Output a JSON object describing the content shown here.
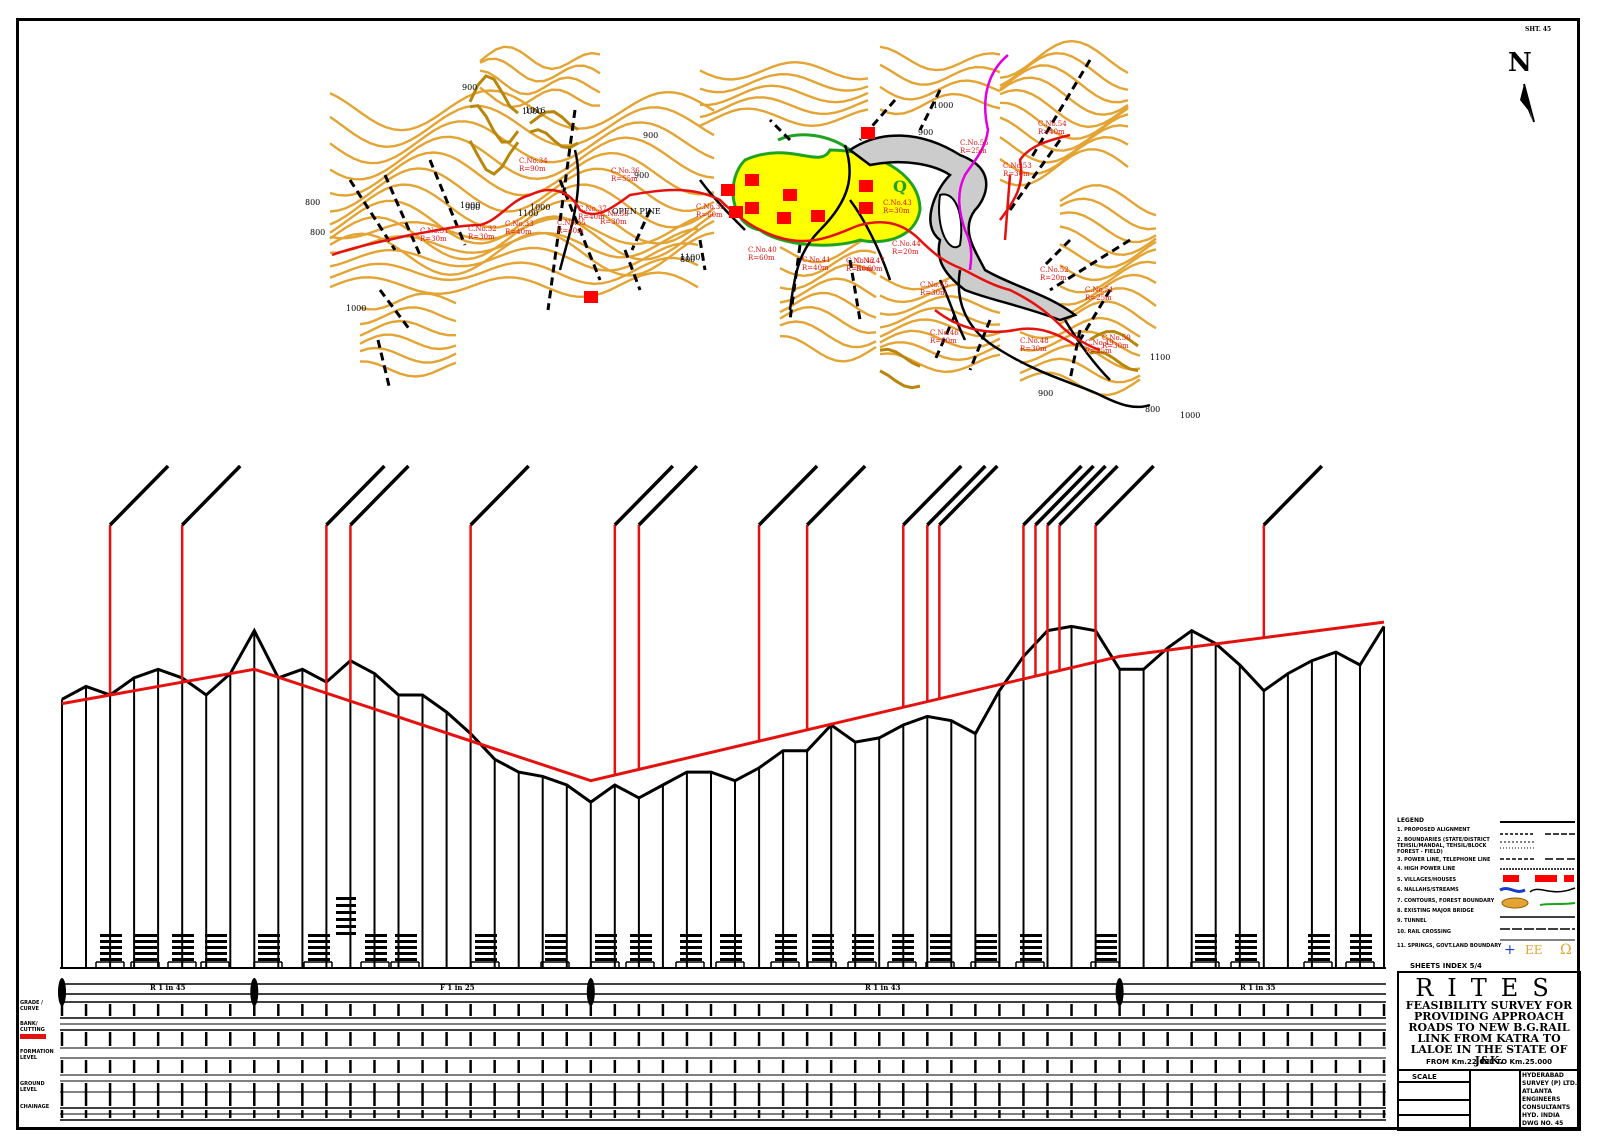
{
  "sheet": {
    "north_label": "N",
    "sheet_no": "SHT. 45"
  },
  "plan": {
    "contour_labels": [
      "800",
      "900",
      "1000",
      "1016",
      "900",
      "800",
      "1000",
      "1100",
      "900",
      "1000",
      "800",
      "1100",
      "900",
      "1000",
      "800",
      "1100",
      "1000",
      "900",
      "1000",
      "900"
    ],
    "curve_labels": [
      {
        "no": "C.No.34",
        "r": "R=90m"
      },
      {
        "no": "C.No.31",
        "r": "R=30m"
      },
      {
        "no": "C.No.32",
        "r": "R=30m"
      },
      {
        "no": "C.No.33",
        "r": "R=40m"
      },
      {
        "no": "C.No.35",
        "r": "R=40m"
      },
      {
        "no": "C.No.36",
        "r": "R=55m"
      },
      {
        "no": "C.No.37",
        "r": "R=40m"
      },
      {
        "no": "C.No.38",
        "r": "R=30m"
      },
      {
        "no": "C.No.39",
        "r": "R=60m"
      },
      {
        "no": "C.No.40",
        "r": "R=60m"
      },
      {
        "no": "C.No.41",
        "r": "R=40m"
      },
      {
        "no": "C.No.42",
        "r": "R=50m"
      },
      {
        "no": "C.No.43",
        "r": "R=30m"
      },
      {
        "no": "C.No.44",
        "r": "R=20m"
      },
      {
        "no": "C.No.45",
        "r": "R=30m"
      },
      {
        "no": "C.No.46",
        "r": "R=60m"
      },
      {
        "no": "C.No.47",
        "r": "R=60m"
      },
      {
        "no": "C.No.48",
        "r": "R=30m"
      },
      {
        "no": "C.No.49",
        "r": "R=25m"
      },
      {
        "no": "C.No.50",
        "r": "R=30m"
      },
      {
        "no": "C.No.51",
        "r": "R=25m"
      },
      {
        "no": "C.No.52",
        "r": "R=20m"
      },
      {
        "no": "C.No.53",
        "r": "R=30m"
      },
      {
        "no": "C.No.54",
        "r": "R=40m"
      },
      {
        "no": "C.No.55",
        "r": "R=25m"
      }
    ],
    "forest_label": "OPEN PINE",
    "quarry_label": "Q"
  },
  "profile": {
    "ground_levels": [
      930,
      945,
      935,
      955,
      965,
      955,
      935,
      960,
      1010,
      955,
      965,
      950,
      975,
      960,
      935,
      935,
      915,
      890,
      860,
      845,
      840,
      830,
      810,
      830,
      815,
      830,
      845,
      845,
      835,
      850,
      870,
      870,
      900,
      880,
      885,
      900,
      910,
      905,
      890,
      940,
      980,
      1010,
      1015,
      1010,
      965,
      965,
      990,
      1010,
      995,
      970,
      940,
      960,
      975,
      985,
      970,
      1015
    ],
    "formation_levels": [
      925,
      965,
      835,
      980,
      1020
    ],
    "formation_chainage_index": [
      0,
      8,
      22,
      44,
      55
    ],
    "grade_labels": [
      "R 1 in 45",
      "F 1 in 25",
      "R 1 in 43",
      "R 1 in 35"
    ],
    "callout_count": 22
  },
  "bands": {
    "labels": [
      "GRADE / CURVE",
      "BANK/ CUTTING",
      "FORMATION LEVEL",
      "GROUND LEVEL",
      "CHAINAGE"
    ]
  },
  "legend": {
    "title": "LEGEND",
    "items": [
      "1. PROPOSED ALIGNMENT",
      "2. BOUNDARIES (STATE/DISTRICT",
      "   TEHSIL/MANDAL, TEHSIL/BLOCK",
      "   FOREST - FIELD)",
      "3. POWER LINE, TELEPHONE LINE",
      "4. HIGH POWER LINE",
      "5. VILLAGES/HOUSES",
      "6. NALLAHS/STREAMS",
      "7. CONTOURS, FOREST BOUNDARY",
      "8. EXISTING MAJOR BRIDGE",
      "9. TUNNEL",
      "10. RAIL CROSSING",
      "11. SPRINGS, GOVT.LAND BOUNDARY"
    ],
    "sheet_index": "SHEETS INDEX 5/4"
  },
  "title_block": {
    "org": "RITES",
    "title": "FEASIBILITY SURVEY FOR PROVIDING APPROACH ROADS TO NEW B.G.RAIL LINK FROM KATRA TO LALOE IN THE STATE OF J&K.",
    "from_to": "FROM Km.22.000 TO Km.25.000",
    "scale_label": "SCALE",
    "company": "HYDERABAD SURVEY (P) LTD. ATLANTA ENGINEERS CONSULTANTS HYD. INDIA DWG NO. 45"
  },
  "colors": {
    "contour": "#e3a433",
    "alignment": "#e4120f",
    "village_fill": "#ff0000",
    "forest_fill": "#ffff00",
    "forest_edge": "#1fa31f",
    "boundary": "#e000e0",
    "profile": "#000000",
    "formation": "#e4120f"
  }
}
